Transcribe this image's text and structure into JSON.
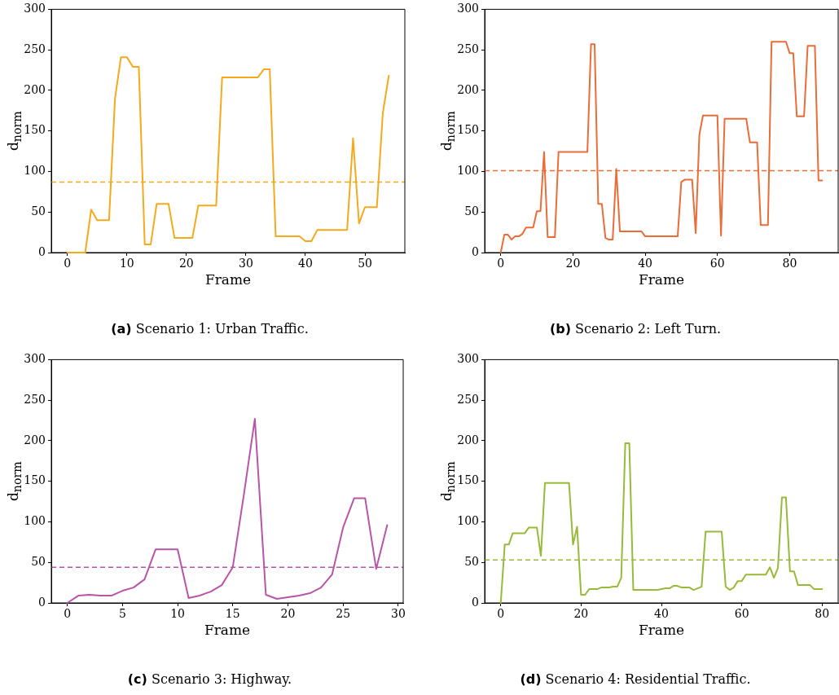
{
  "chart_data": [
    {
      "type": "line",
      "xlabel": "Frame",
      "ylabel": "d$_{norm}$",
      "annotations": [
        "(a) Scenario 1: Urban Traffic."
      ],
      "xlim": [
        -2.7,
        56.7
      ],
      "xticks": [
        0,
        10,
        20,
        30,
        40,
        50
      ],
      "ylim": [
        0,
        300
      ],
      "yticks": [
        0,
        50,
        100,
        150,
        200,
        250,
        300
      ],
      "x": [
        0,
        1,
        2,
        3,
        4,
        5,
        6,
        7,
        8,
        9,
        10,
        11,
        12,
        13,
        14,
        15,
        16,
        17,
        18,
        19,
        20,
        21,
        22,
        23,
        24,
        25,
        26,
        27,
        28,
        29,
        30,
        31,
        32,
        33,
        34,
        35,
        36,
        37,
        38,
        39,
        40,
        41,
        42,
        43,
        44,
        45,
        46,
        47,
        48,
        49,
        50,
        51,
        52,
        53,
        54
      ],
      "series": [
        {
          "color": "#f5a91d",
          "values": [
            0,
            0,
            0,
            0,
            53,
            40,
            40,
            40,
            190,
            241,
            241,
            229,
            229,
            10,
            10,
            60,
            60,
            60,
            18,
            18,
            18,
            18,
            58,
            58,
            58,
            58,
            216,
            216,
            216,
            216,
            216,
            216,
            216,
            226,
            226,
            20,
            20,
            20,
            20,
            20,
            14,
            14,
            28,
            28,
            28,
            28,
            28,
            28,
            141,
            36,
            56,
            56,
            56,
            172,
            218
          ]
        }
      ],
      "ref_lines": [
        {
          "axis": "y",
          "value": 87,
          "color": "#f5a91d",
          "line_style": "dashed"
        }
      ]
    },
    {
      "type": "line",
      "xlabel": "Frame",
      "ylabel": "d$_{norm}$",
      "annotations": [
        "(b) Scenario 2: Left Turn."
      ],
      "xlim": [
        -4.45,
        93.45
      ],
      "xticks": [
        0,
        20,
        40,
        60,
        80
      ],
      "ylim": [
        0,
        300
      ],
      "yticks": [
        0,
        50,
        100,
        150,
        200,
        250,
        300
      ],
      "x": [
        0,
        1,
        2,
        3,
        4,
        5,
        6,
        7,
        8,
        9,
        10,
        11,
        12,
        13,
        14,
        15,
        16,
        17,
        18,
        19,
        20,
        21,
        22,
        23,
        24,
        25,
        26,
        27,
        28,
        29,
        30,
        31,
        32,
        33,
        34,
        35,
        36,
        37,
        38,
        39,
        40,
        41,
        42,
        43,
        44,
        45,
        46,
        47,
        48,
        49,
        50,
        51,
        52,
        53,
        54,
        55,
        56,
        57,
        58,
        59,
        60,
        61,
        62,
        63,
        64,
        65,
        66,
        67,
        68,
        69,
        70,
        71,
        72,
        73,
        74,
        75,
        76,
        77,
        78,
        79,
        80,
        81,
        82,
        83,
        84,
        85,
        86,
        87,
        88,
        89
      ],
      "series": [
        {
          "color": "#ea6c37",
          "values": [
            0,
            22,
            22,
            16,
            20,
            20,
            23,
            31,
            31,
            31,
            51,
            51,
            124,
            19,
            19,
            19,
            124,
            124,
            124,
            124,
            124,
            124,
            124,
            124,
            124,
            257,
            257,
            60,
            60,
            18,
            16,
            16,
            103,
            26,
            26,
            26,
            26,
            26,
            26,
            26,
            20,
            20,
            20,
            20,
            20,
            20,
            20,
            20,
            20,
            20,
            87,
            90,
            90,
            90,
            24,
            145,
            169,
            169,
            169,
            169,
            169,
            21,
            165,
            165,
            165,
            165,
            165,
            165,
            165,
            136,
            136,
            136,
            34,
            34,
            34,
            260,
            260,
            260,
            260,
            260,
            246,
            246,
            168,
            168,
            168,
            255,
            255,
            255,
            89,
            89
          ]
        }
      ],
      "ref_lines": [
        {
          "axis": "y",
          "value": 101,
          "color": "#ea6c37",
          "line_style": "dashed"
        }
      ]
    },
    {
      "type": "line",
      "xlabel": "Frame",
      "ylabel": "d$_{norm}$",
      "annotations": [
        "(c) Scenario 3: Highway."
      ],
      "xlim": [
        -1.45,
        30.45
      ],
      "xticks": [
        0,
        5,
        10,
        15,
        20,
        25,
        30
      ],
      "ylim": [
        0,
        300
      ],
      "yticks": [
        0,
        50,
        100,
        150,
        200,
        250,
        300
      ],
      "x": [
        0,
        1,
        2,
        3,
        4,
        5,
        6,
        7,
        8,
        9,
        10,
        11,
        12,
        13,
        14,
        15,
        16,
        17,
        18,
        19,
        20,
        21,
        22,
        23,
        24,
        25,
        26,
        27,
        28,
        29
      ],
      "series": [
        {
          "color": "#b855a7",
          "values": [
            0,
            9,
            10,
            9,
            9,
            15,
            19,
            29,
            66,
            66,
            66,
            6,
            9,
            14,
            22,
            44,
            133,
            227,
            10,
            5,
            7,
            9,
            12,
            19,
            35,
            93,
            129,
            129,
            42,
            96
          ]
        }
      ],
      "ref_lines": [
        {
          "axis": "y",
          "value": 44,
          "color": "#b855a7",
          "line_style": "dashed"
        }
      ]
    },
    {
      "type": "line",
      "xlabel": "Frame",
      "ylabel": "d$_{norm}$",
      "annotations": [
        "(d) Scenario 4: Residential Traffic."
      ],
      "xlim": [
        -4,
        84
      ],
      "xticks": [
        0,
        20,
        40,
        60,
        80
      ],
      "ylim": [
        0,
        300
      ],
      "yticks": [
        0,
        50,
        100,
        150,
        200,
        250,
        300
      ],
      "x": [
        0,
        1,
        2,
        3,
        4,
        5,
        6,
        7,
        8,
        9,
        10,
        11,
        12,
        13,
        14,
        15,
        16,
        17,
        18,
        19,
        20,
        21,
        22,
        23,
        24,
        25,
        26,
        27,
        28,
        29,
        30,
        31,
        32,
        33,
        34,
        35,
        36,
        37,
        38,
        39,
        40,
        41,
        42,
        43,
        44,
        45,
        46,
        47,
        48,
        49,
        50,
        51,
        52,
        53,
        54,
        55,
        56,
        57,
        58,
        59,
        60,
        61,
        62,
        63,
        64,
        65,
        66,
        67,
        68,
        69,
        70,
        71,
        72,
        73,
        74,
        75,
        76,
        77,
        78,
        79,
        80
      ],
      "series": [
        {
          "color": "#99b93b",
          "values": [
            0,
            72,
            72,
            86,
            86,
            86,
            86,
            93,
            93,
            93,
            58,
            148,
            148,
            148,
            148,
            148,
            148,
            148,
            72,
            94,
            10,
            10,
            17,
            17,
            17,
            19,
            19,
            19,
            20,
            20,
            31,
            197,
            197,
            16,
            16,
            16,
            16,
            16,
            16,
            16,
            17,
            18,
            18,
            21,
            21,
            19,
            19,
            19,
            16,
            18,
            20,
            88,
            88,
            88,
            88,
            88,
            20,
            16,
            19,
            27,
            27,
            35,
            35,
            35,
            35,
            35,
            35,
            44,
            31,
            43,
            130,
            130,
            39,
            39,
            22,
            22,
            22,
            22,
            17,
            17,
            17
          ]
        }
      ],
      "ref_lines": [
        {
          "axis": "y",
          "value": 53,
          "color": "#99b93b",
          "line_style": "dashed"
        }
      ]
    }
  ]
}
